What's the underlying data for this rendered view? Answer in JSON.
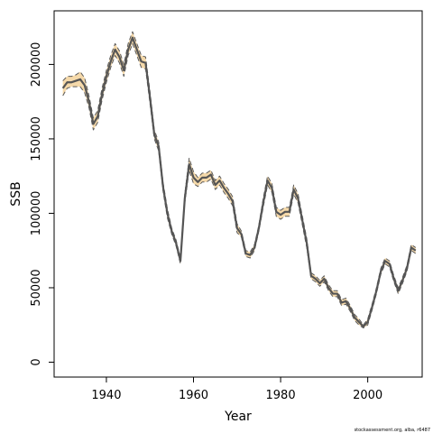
{
  "chart_data": {
    "type": "line",
    "title": "",
    "xlabel": "Year",
    "ylabel": "SSB",
    "xlim": [
      1928,
      2012.5
    ],
    "ylim": [
      -10000,
      236000
    ],
    "xticks": [
      1940,
      1960,
      1980,
      2000
    ],
    "yticks": [
      0,
      50000,
      100000,
      150000,
      200000
    ],
    "grid": false,
    "legend": "none",
    "credit": "stockassessment.org, alba, r6487",
    "colors": {
      "band": "#f5d9aa",
      "bounds": "#5a5a5a",
      "estimate": "#555555"
    },
    "series": [
      {
        "x": [
          1930,
          1931,
          1932,
          1933,
          1934,
          1935,
          1936,
          1937,
          1938,
          1939,
          1940,
          1941,
          1942,
          1943,
          1944,
          1945,
          1946,
          1947,
          1948,
          1949,
          1950,
          1951,
          1952,
          1953,
          1954,
          1955,
          1956,
          1957,
          1958,
          1959,
          1960,
          1961,
          1962,
          1963,
          1964,
          1965,
          1966,
          1967,
          1968,
          1969,
          1970,
          1971,
          1972,
          1973,
          1974,
          1975,
          1976,
          1977,
          1978,
          1979,
          1980,
          1981,
          1982,
          1983,
          1984,
          1985,
          1986,
          1987,
          1988,
          1989,
          1990,
          1991,
          1992,
          1993,
          1994,
          1995,
          1996,
          1997,
          1998,
          1999,
          2000,
          2001,
          2002,
          2003,
          2004,
          2005,
          2006,
          2007,
          2008,
          2009,
          2010,
          2011
        ],
        "values": [
          184000,
          188000,
          188000,
          189000,
          190000,
          186000,
          175000,
          160000,
          165000,
          180000,
          192000,
          202000,
          210000,
          205000,
          196000,
          210000,
          218000,
          210000,
          202000,
          201000,
          178000,
          153000,
          145000,
          118000,
          100000,
          88000,
          80000,
          68000,
          110000,
          133000,
          124000,
          121000,
          124000,
          124000,
          126000,
          119000,
          122000,
          117000,
          113000,
          108000,
          90000,
          86000,
          73000,
          72000,
          77000,
          90000,
          107000,
          122000,
          117000,
          101000,
          99000,
          101000,
          101000,
          116000,
          110000,
          95000,
          80000,
          58000,
          56000,
          53000,
          56000,
          50000,
          46000,
          46000,
          40000,
          41000,
          36000,
          30000,
          27000,
          24000,
          27000,
          37000,
          48000,
          61000,
          68000,
          66000,
          56000,
          48000,
          55000,
          63000,
          77000,
          75000
        ],
        "lower": [
          179000,
          184000,
          185000,
          185000,
          185000,
          181000,
          171000,
          156000,
          161000,
          176000,
          188000,
          198000,
          206000,
          201000,
          192000,
          206000,
          214000,
          206000,
          198000,
          197000,
          174000,
          150000,
          142000,
          115000,
          97000,
          86000,
          78000,
          66000,
          107000,
          129000,
          120000,
          118000,
          121000,
          121000,
          123000,
          116000,
          119000,
          114000,
          110000,
          105000,
          87000,
          84000,
          71000,
          70000,
          75000,
          88000,
          104000,
          119000,
          114000,
          98000,
          96000,
          98000,
          98000,
          113000,
          107000,
          92000,
          77000,
          56000,
          54000,
          51000,
          54000,
          48000,
          44000,
          44000,
          38000,
          39000,
          34000,
          28000,
          25000,
          23000,
          25000,
          35000,
          46000,
          59000,
          66000,
          64000,
          54000,
          46000,
          53000,
          61000,
          75000,
          73000
        ],
        "upper": [
          189000,
          192000,
          192000,
          193000,
          195000,
          191000,
          179000,
          164000,
          169000,
          184000,
          196000,
          206000,
          214000,
          209000,
          200000,
          214000,
          222000,
          214000,
          206000,
          205000,
          182000,
          156000,
          148000,
          121000,
          103000,
          90000,
          82000,
          70000,
          113000,
          137000,
          128000,
          124000,
          127000,
          127000,
          129000,
          122000,
          125000,
          120000,
          116000,
          111000,
          93000,
          88000,
          75000,
          74000,
          79000,
          92000,
          110000,
          125000,
          120000,
          104000,
          102000,
          104000,
          104000,
          119000,
          113000,
          98000,
          83000,
          60000,
          58000,
          55000,
          58000,
          52000,
          48000,
          48000,
          42000,
          43000,
          38000,
          32000,
          29000,
          25000,
          29000,
          39000,
          50000,
          63000,
          70000,
          68000,
          58000,
          50000,
          57000,
          65000,
          79000,
          77000
        ]
      }
    ]
  }
}
